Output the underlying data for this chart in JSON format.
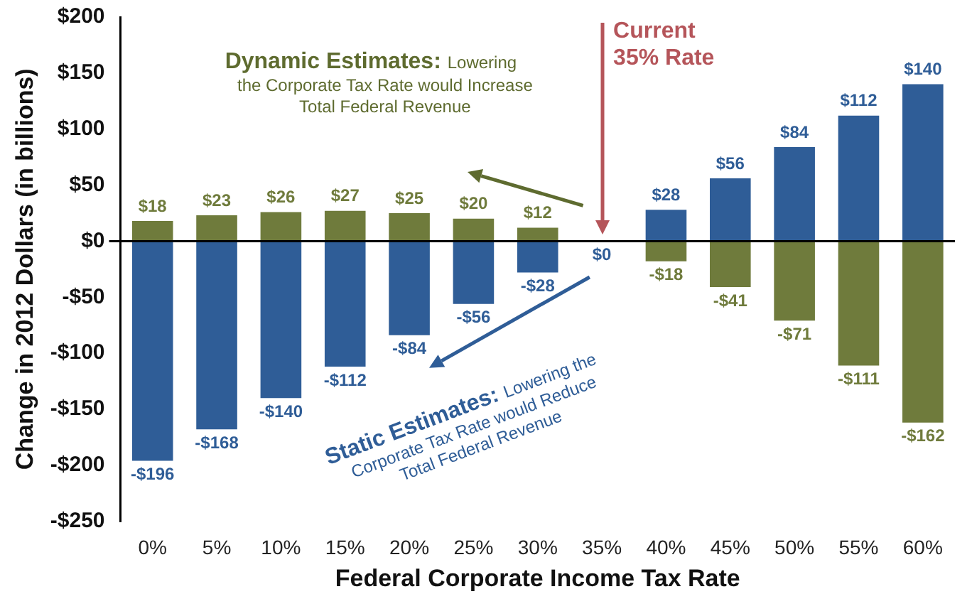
{
  "chart_data": {
    "type": "bar",
    "xlabel": "Federal Corporate Income Tax Rate",
    "ylabel": "Change in 2012 Dollars (in billions)",
    "categories": [
      "0%",
      "5%",
      "10%",
      "15%",
      "20%",
      "25%",
      "30%",
      "35%",
      "40%",
      "45%",
      "50%",
      "55%",
      "60%"
    ],
    "series": [
      {
        "color": "#2f5d97",
        "values": [
          -196,
          -168,
          -140,
          -112,
          -84,
          -56,
          -28,
          0,
          28,
          56,
          84,
          112,
          140
        ],
        "value_labels": [
          "-$196",
          "-$168",
          "-$140",
          "-$112",
          "-$84",
          "-$56",
          "-$28",
          "$0",
          "$28",
          "$56",
          "$84",
          "$112",
          "$140"
        ]
      },
      {
        "color": "#6f7b3c",
        "values": [
          18,
          23,
          26,
          27,
          25,
          20,
          12,
          null,
          -18,
          -41,
          -71,
          -111,
          -162
        ],
        "value_labels": [
          "$18",
          "$23",
          "$26",
          "$27",
          "$25",
          "$20",
          "$12",
          null,
          "-$18",
          "-$41",
          "-$71",
          "-$111",
          "-$162"
        ]
      }
    ],
    "ylim": [
      -250,
      200
    ],
    "yticks": [
      {
        "value": -250,
        "label": "-$250"
      },
      {
        "value": -200,
        "label": "-$200"
      },
      {
        "value": -150,
        "label": "-$150"
      },
      {
        "value": -100,
        "label": "-$100"
      },
      {
        "value": -50,
        "label": "-$50"
      },
      {
        "value": 0,
        "label": "$0"
      },
      {
        "value": 50,
        "label": "$50"
      },
      {
        "value": 100,
        "label": "$100"
      },
      {
        "value": 150,
        "label": "$150"
      },
      {
        "value": 200,
        "label": "$200"
      }
    ],
    "annotations": [
      "Dynamic Estimates: Lowering the Corporate Tax Rate would Increase Total Federal Revenue",
      "Static Estimates: Lowering the Corporate Tax Rate would Reduce Total Federal Revenue",
      "Current 35% Rate"
    ],
    "stacked": true,
    "legend": false
  }
}
